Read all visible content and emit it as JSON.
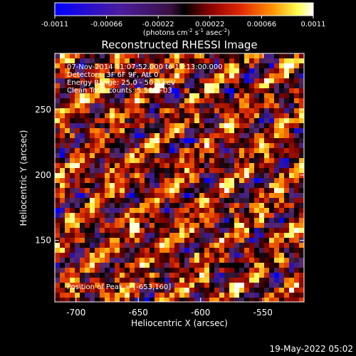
{
  "colorbar": {
    "ticks": [
      "-0.0011",
      "-0.00066",
      "-0.00022",
      "0.00022",
      "0.00066",
      "0.0011"
    ],
    "tick_values": [
      -0.0011,
      -0.00066,
      -0.00022,
      0.00022,
      0.00066,
      0.0011
    ],
    "range": [
      -0.0011,
      0.0011
    ],
    "unit_main": "(photons cm",
    "unit_sup1": "-2",
    "unit_mid": " s",
    "unit_sup2": "-1",
    "unit_end": " asec",
    "unit_sup3": "-2",
    "unit_close": ")",
    "colors": [
      "#0000ff",
      "#3a1a8f",
      "#5a2a6a",
      "#000000",
      "#7a0000",
      "#e03000",
      "#ff9a00",
      "#ffff60",
      "#ffffff"
    ]
  },
  "chart_data": {
    "type": "heatmap",
    "title": "Reconstructed RHESSI Image",
    "xlabel": "Heliocentric X (arcsec)",
    "ylabel": "Heliocentric Y (arcsec)",
    "xlim": [
      -717,
      -517
    ],
    "ylim": [
      103,
      293
    ],
    "xticks": [
      -700,
      -650,
      -600,
      -550
    ],
    "xtick_labels": [
      "-700",
      "-650",
      "-600",
      "-550"
    ],
    "yticks": [
      150,
      200,
      250
    ],
    "ytick_labels": [
      "150",
      "200",
      "250"
    ],
    "pixel_size_arcsec": 4,
    "peak_position": [
      -653,
      160
    ],
    "annotations": {
      "time_line": "07-Nov-2014 11:07:52.000 to 11:13:00.000",
      "detectors_line": "Detectors: 3F 6F 9F, Att 0",
      "energy_line": "Energy Range: 25.0 - 50.0 keV",
      "clean_line": "Clean    Total counts: 5.56E+03",
      "peak_line": "Position of Peak = [-653,160]"
    }
  },
  "footer": {
    "timestamp": "19-May-2022 05:02"
  }
}
